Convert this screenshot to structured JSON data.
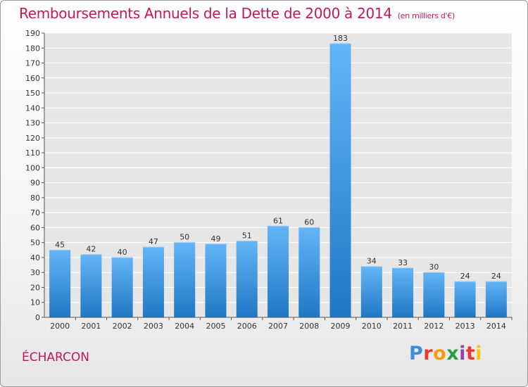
{
  "header": {
    "title": "Remboursements Annuels de la Dette de 2000 à 2014",
    "unit": "(en milliers d'€)"
  },
  "footer": {
    "place": "ÉCHARCON",
    "logo_text": "Proxiti",
    "logo_colors": [
      "#3a8fd9",
      "#e53935",
      "#f39c12",
      "#2e9e44",
      "#8e44ad",
      "#e53935",
      "#f1c40f"
    ]
  },
  "colors": {
    "title": "#c2185b",
    "bar_top": "#64b5f6",
    "bar_bottom": "#1f77c4",
    "grid": "#ffffff",
    "plot_background": "#e6e6e6"
  },
  "chart_data": {
    "type": "bar",
    "title": "Remboursements Annuels de la Dette de 2000 à 2014",
    "subtitle": "(en milliers d'€)",
    "xlabel": "",
    "ylabel": "",
    "categories": [
      "2000",
      "2001",
      "2002",
      "2003",
      "2004",
      "2005",
      "2006",
      "2007",
      "2008",
      "2009",
      "2010",
      "2011",
      "2012",
      "2013",
      "2014"
    ],
    "values": [
      45,
      42,
      40,
      47,
      50,
      49,
      51,
      61,
      60,
      183,
      34,
      33,
      30,
      24,
      24
    ],
    "ylim": [
      0,
      190
    ],
    "ytick_step": 10,
    "grid": true,
    "legend": "none"
  }
}
